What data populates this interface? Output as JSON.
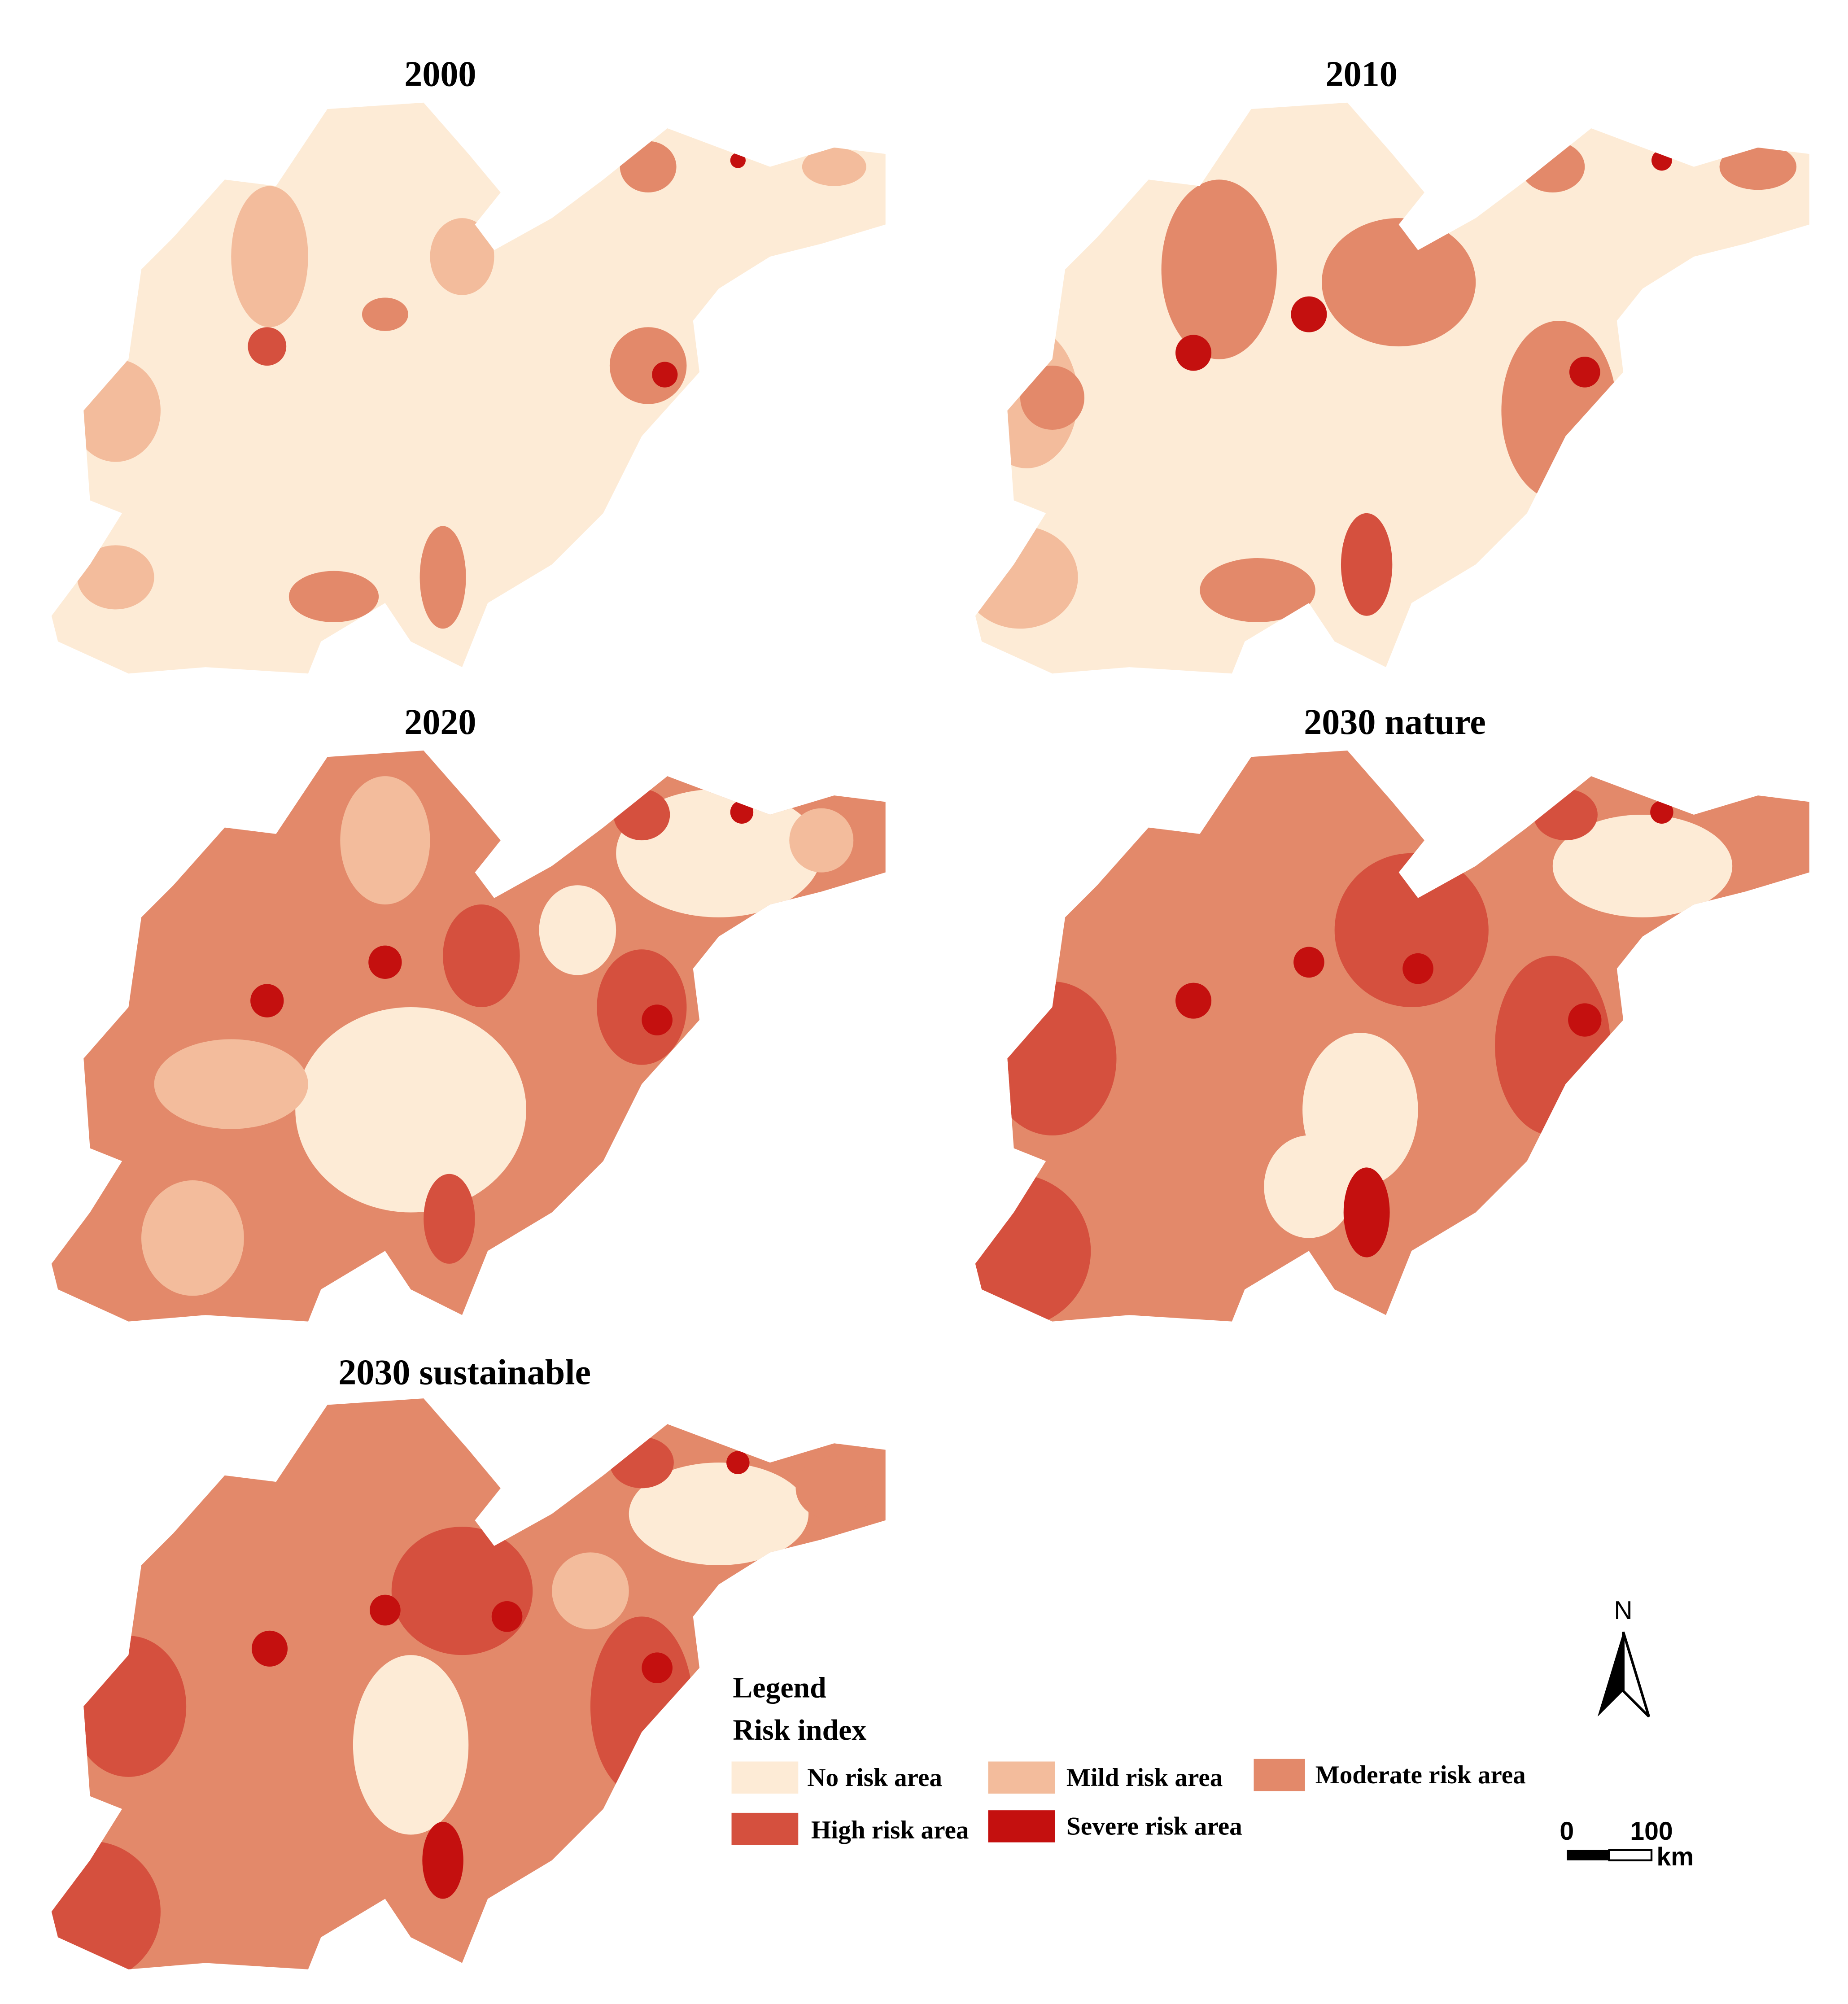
{
  "panels": [
    {
      "title": "2000"
    },
    {
      "title": "2010"
    },
    {
      "title": "2020"
    },
    {
      "title": "2030 nature"
    },
    {
      "title": "2030 sustainable"
    }
  ],
  "legend": {
    "title": "Legend",
    "subtitle": "Risk index",
    "items": [
      {
        "label": "No risk area",
        "color": "#fdebd6"
      },
      {
        "label": "Mild risk area",
        "color": "#f3bc9c"
      },
      {
        "label": "Moderate risk area",
        "color": "#e3896a"
      },
      {
        "label": "High risk area",
        "color": "#d5503e"
      },
      {
        "label": "Severe risk area",
        "color": "#c4100f"
      }
    ]
  },
  "north_arrow": {
    "label": "N"
  },
  "scale_bar": {
    "ticks": [
      0,
      100
    ],
    "unit": "km"
  }
}
